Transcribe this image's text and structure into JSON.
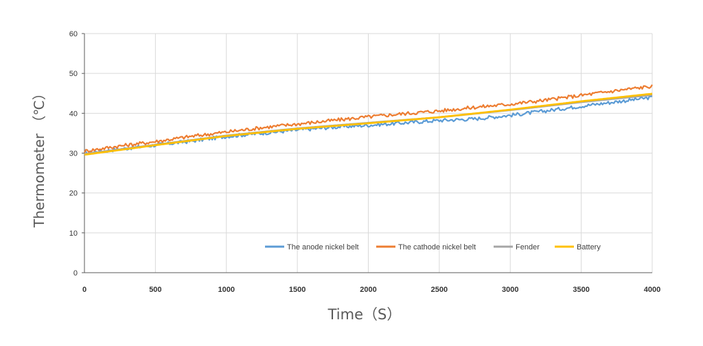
{
  "chart_data": {
    "type": "line",
    "xlabel": "Time（S）",
    "ylabel": "Thermometer （℃）",
    "xlim": [
      0,
      4000
    ],
    "ylim": [
      0,
      60
    ],
    "xticks": [
      0,
      500,
      1000,
      1500,
      2000,
      2500,
      3000,
      3500,
      4000
    ],
    "yticks": [
      0,
      10,
      20,
      30,
      40,
      50,
      60
    ],
    "grid": true,
    "legend_position": "bottom-center-inside",
    "series": [
      {
        "name": "The anode nickel belt",
        "color": "#5B9BD5",
        "x": [
          0,
          250,
          500,
          750,
          1000,
          1250,
          1500,
          1750,
          2000,
          2250,
          2500,
          2750,
          3000,
          3250,
          3500,
          3750,
          4000
        ],
        "y": [
          30.0,
          31.0,
          32.0,
          33.0,
          34.2,
          35.0,
          35.8,
          36.5,
          37.0,
          37.6,
          38.2,
          38.6,
          39.5,
          40.6,
          41.8,
          42.9,
          44.0
        ]
      },
      {
        "name": "The cathode nickel belt",
        "color": "#ED7D31",
        "x": [
          0,
          250,
          500,
          750,
          1000,
          1250,
          1500,
          1750,
          2000,
          2250,
          2500,
          2750,
          3000,
          3250,
          3500,
          3750,
          4000
        ],
        "y": [
          30.5,
          31.8,
          32.9,
          34.2,
          35.3,
          36.4,
          37.3,
          38.2,
          39.1,
          39.9,
          40.6,
          41.5,
          42.3,
          43.3,
          44.5,
          45.7,
          46.8
        ]
      },
      {
        "name": "Fender",
        "color": "#A5A5A5",
        "x": [
          0,
          500,
          1000,
          1500,
          2000,
          2500,
          3000,
          3500,
          4000
        ],
        "y": [
          29.8,
          32.1,
          34.4,
          36.2,
          37.6,
          39.0,
          40.8,
          42.8,
          44.6
        ]
      },
      {
        "name": "Battery",
        "color": "#FFC000",
        "x": [
          0,
          500,
          1000,
          1500,
          2000,
          2500,
          3000,
          3500,
          4000
        ],
        "y": [
          29.6,
          32.0,
          34.3,
          36.1,
          37.5,
          39.0,
          40.9,
          43.0,
          44.9
        ]
      }
    ]
  }
}
